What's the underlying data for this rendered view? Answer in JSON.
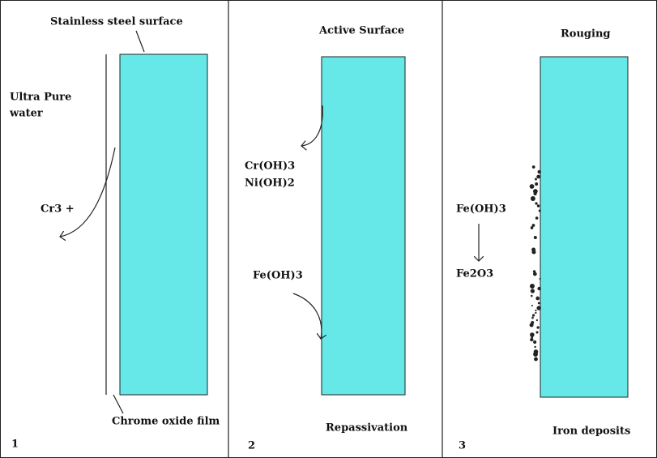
{
  "panels": [
    {
      "number": "1",
      "top_label": "Stainless steel surface",
      "bottom_label": "Chrome oxide film",
      "water": [
        "Ultra Pure",
        "water"
      ],
      "ion": "Cr3 +"
    },
    {
      "number": "2",
      "top_label": "Active Surface",
      "bottom_label": "Repassivation",
      "hydroxides": [
        "Cr(OH)3",
        "Ni(OH)2"
      ],
      "iron": "Fe(OH)3"
    },
    {
      "number": "3",
      "top_label": "Rouging",
      "bottom_label": "Iron deposits",
      "from": "Fe(OH)3",
      "to": "Fe2O3"
    }
  ]
}
